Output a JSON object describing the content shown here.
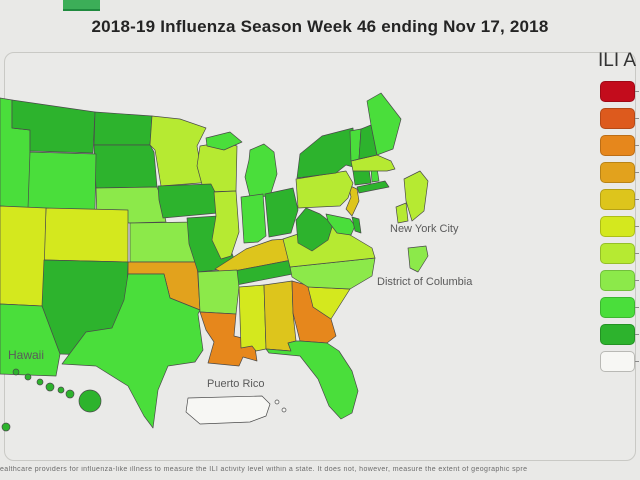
{
  "header": {
    "title": "2018-19 Influenza Season Week 46 ending Nov 17, 2018"
  },
  "legend": {
    "title": "ILI A",
    "levels": [
      {
        "level": 10,
        "name": "high-level-10",
        "color": "#c30c1c"
      },
      {
        "level": 9,
        "name": "high-level-9",
        "color": "#dd5a1d"
      },
      {
        "level": 8,
        "name": "moderate-level-8",
        "color": "#e6871c"
      },
      {
        "level": 7,
        "name": "moderate-level-7",
        "color": "#e2a21d"
      },
      {
        "level": 6,
        "name": "low-level-6",
        "color": "#ddc51c"
      },
      {
        "level": 5,
        "name": "low-level-5",
        "color": "#d4e81e"
      },
      {
        "level": 4,
        "name": "minimal-level-4",
        "color": "#b6ea32"
      },
      {
        "level": 3,
        "name": "minimal-level-3",
        "color": "#8ce94a"
      },
      {
        "level": 2,
        "name": "minimal-level-2",
        "color": "#4ade3b"
      },
      {
        "level": 1,
        "name": "minimal-level-1",
        "color": "#2db32d"
      },
      {
        "level": 0,
        "name": "insufficient-data",
        "color": "#f7f7f4"
      }
    ]
  },
  "map": {
    "labels": {
      "nyc": "New York City",
      "dc": "District of Columbia",
      "hawaii": "Hawaii",
      "puerto_rico": "Puerto Rico"
    },
    "states": [
      {
        "id": "ID",
        "name": "Idaho",
        "level": 2
      },
      {
        "id": "MT",
        "name": "Montana",
        "level": 1
      },
      {
        "id": "ND",
        "name": "North Dakota",
        "level": 1
      },
      {
        "id": "SD",
        "name": "South Dakota",
        "level": 1
      },
      {
        "id": "WY",
        "name": "Wyoming",
        "level": 2
      },
      {
        "id": "NE",
        "name": "Nebraska",
        "level": 3
      },
      {
        "id": "CO",
        "name": "Colorado",
        "level": 5
      },
      {
        "id": "UT",
        "name": "Utah",
        "level": 5
      },
      {
        "id": "KS",
        "name": "Kansas",
        "level": 3
      },
      {
        "id": "OK",
        "name": "Oklahoma",
        "level": 7
      },
      {
        "id": "NM",
        "name": "New Mexico",
        "level": 1
      },
      {
        "id": "AZ",
        "name": "Arizona",
        "level": 2
      },
      {
        "id": "TX",
        "name": "Texas",
        "level": 2
      },
      {
        "id": "MN",
        "name": "Minnesota",
        "level": 4
      },
      {
        "id": "WI",
        "name": "Wisconsin",
        "level": 4
      },
      {
        "id": "MI",
        "name": "Michigan",
        "level": 2
      },
      {
        "id": "IA",
        "name": "Iowa",
        "level": 1
      },
      {
        "id": "MO",
        "name": "Missouri",
        "level": 1
      },
      {
        "id": "IL",
        "name": "Illinois",
        "level": 4
      },
      {
        "id": "IN",
        "name": "Indiana",
        "level": 2
      },
      {
        "id": "OH",
        "name": "Ohio",
        "level": 1
      },
      {
        "id": "KY",
        "name": "Kentucky",
        "level": 6
      },
      {
        "id": "TN",
        "name": "Tennessee",
        "level": 1
      },
      {
        "id": "AR",
        "name": "Arkansas",
        "level": 3
      },
      {
        "id": "LA",
        "name": "Louisiana",
        "level": 8
      },
      {
        "id": "MS",
        "name": "Mississippi",
        "level": 5
      },
      {
        "id": "AL",
        "name": "Alabama",
        "level": 6
      },
      {
        "id": "GA",
        "name": "Georgia",
        "level": 8
      },
      {
        "id": "FL",
        "name": "Florida",
        "level": 2
      },
      {
        "id": "SC",
        "name": "South Carolina",
        "level": 5
      },
      {
        "id": "NC",
        "name": "North Carolina",
        "level": 3
      },
      {
        "id": "VA",
        "name": "Virginia",
        "level": 4
      },
      {
        "id": "WV",
        "name": "West Virginia",
        "level": 1
      },
      {
        "id": "MD",
        "name": "Maryland",
        "level": 2
      },
      {
        "id": "DE",
        "name": "Delaware",
        "level": 1
      },
      {
        "id": "NJ",
        "name": "New Jersey",
        "level": 6
      },
      {
        "id": "PA",
        "name": "Pennsylvania",
        "level": 4
      },
      {
        "id": "NY",
        "name": "New York",
        "level": 1
      },
      {
        "id": "LI",
        "name": "New York Long Island",
        "level": 1
      },
      {
        "id": "CT",
        "name": "Connecticut",
        "level": 1
      },
      {
        "id": "RI",
        "name": "Rhode Island",
        "level": 2
      },
      {
        "id": "MA",
        "name": "Massachusetts",
        "level": 4
      },
      {
        "id": "VT",
        "name": "Vermont",
        "level": 2
      },
      {
        "id": "NH",
        "name": "New Hampshire",
        "level": 1
      },
      {
        "id": "ME",
        "name": "Maine",
        "level": 2
      },
      {
        "id": "NYC",
        "name": "New York City",
        "level": 4
      },
      {
        "id": "DC",
        "name": "District of Columbia",
        "level": 3
      },
      {
        "id": "HI",
        "name": "Hawaii",
        "level": 1
      },
      {
        "id": "PR",
        "name": "Puerto Rico",
        "level": 0
      }
    ]
  },
  "footer": {
    "note": "ealthcare providers for influenza-like illness to measure the ILI activity level within a state. It does not, however, measure the extent of geographic spre"
  }
}
